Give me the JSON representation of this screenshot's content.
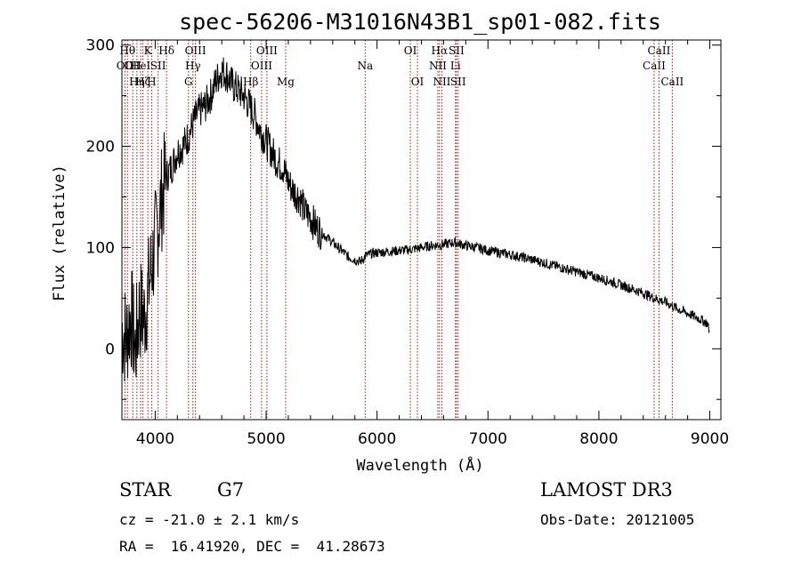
{
  "chart_data": {
    "type": "line",
    "title": "spec-56206-M31016N43B1_sp01-082.fits",
    "xlabel": "Wavelength (Å)",
    "ylabel": "Flux (relative)",
    "xlim": [
      3700,
      9100
    ],
    "ylim": [
      -70,
      305
    ],
    "xticks": [
      4000,
      5000,
      6000,
      7000,
      8000,
      9000
    ],
    "yticks": [
      0,
      100,
      200,
      300
    ],
    "series": [
      {
        "name": "spectrum",
        "x": [
          3700,
          3740,
          3780,
          3820,
          3860,
          3900,
          3940,
          3980,
          4020,
          4060,
          4100,
          4150,
          4200,
          4250,
          4300,
          4350,
          4400,
          4450,
          4500,
          4550,
          4600,
          4650,
          4700,
          4750,
          4800,
          4850,
          4900,
          4950,
          5000,
          5050,
          5100,
          5150,
          5200,
          5250,
          5300,
          5350,
          5400,
          5450,
          5500,
          5550,
          5600,
          5650,
          5700,
          5750,
          5800,
          5850,
          5900,
          5950,
          6000,
          6100,
          6200,
          6300,
          6400,
          6500,
          6600,
          6700,
          6800,
          6900,
          7000,
          7200,
          7400,
          7600,
          7800,
          8000,
          8200,
          8400,
          8500,
          8600,
          8700,
          8800,
          8900,
          8980,
          9000
        ],
        "y": [
          20,
          10,
          35,
          0,
          40,
          30,
          60,
          90,
          120,
          150,
          170,
          180,
          195,
          200,
          210,
          225,
          235,
          240,
          250,
          265,
          275,
          270,
          260,
          255,
          250,
          240,
          230,
          215,
          205,
          195,
          185,
          180,
          165,
          155,
          150,
          135,
          130,
          120,
          115,
          110,
          105,
          100,
          95,
          90,
          88,
          86,
          92,
          94,
          95,
          96,
          97,
          98,
          100,
          102,
          103,
          105,
          102,
          100,
          97,
          93,
          88,
          82,
          76,
          70,
          63,
          55,
          50,
          46,
          40,
          35,
          30,
          25,
          15
        ]
      }
    ],
    "line_markers": [
      {
        "wl": 3727,
        "label": "OII",
        "row": 2
      },
      {
        "wl": 3750,
        "label": "Hθ",
        "row": 1
      },
      {
        "wl": 3798,
        "label": "OII",
        "row": 2
      },
      {
        "wl": 3835,
        "label": "Hη",
        "row": 3
      },
      {
        "wl": 3869,
        "label": "HeI",
        "row": 2
      },
      {
        "wl": 3889,
        "label": "Hζ",
        "row": 3
      },
      {
        "wl": 3934,
        "label": "K",
        "row": 1
      },
      {
        "wl": 3968,
        "label": "H",
        "row": 3
      },
      {
        "wl": 4026,
        "label": "SII",
        "row": 2
      },
      {
        "wl": 4102,
        "label": "Hδ",
        "row": 1
      },
      {
        "wl": 4300,
        "label": "G",
        "row": 3
      },
      {
        "wl": 4340,
        "label": "Hγ",
        "row": 2
      },
      {
        "wl": 4363,
        "label": "OIII",
        "row": 1
      },
      {
        "wl": 4861,
        "label": "Hβ",
        "row": 3
      },
      {
        "wl": 4959,
        "label": "OIII",
        "row": 2
      },
      {
        "wl": 5007,
        "label": "OIII",
        "row": 1
      },
      {
        "wl": 5176,
        "label": "Mg",
        "row": 3
      },
      {
        "wl": 5893,
        "label": "Na",
        "row": 2
      },
      {
        "wl": 6300,
        "label": "OI",
        "row": 1
      },
      {
        "wl": 6364,
        "label": "OI",
        "row": 3
      },
      {
        "wl": 6548,
        "label": "NII",
        "row": 2
      },
      {
        "wl": 6563,
        "label": "Hα",
        "row": 1
      },
      {
        "wl": 6584,
        "label": "NII",
        "row": 3
      },
      {
        "wl": 6707,
        "label": "Li",
        "row": 2
      },
      {
        "wl": 6716,
        "label": "SII",
        "row": 1
      },
      {
        "wl": 6731,
        "label": "SII",
        "row": 3
      },
      {
        "wl": 8498,
        "label": "CaII",
        "row": 2
      },
      {
        "wl": 8542,
        "label": "CaII",
        "row": 1
      },
      {
        "wl": 8662,
        "label": "CaII",
        "row": 3
      }
    ]
  },
  "info": {
    "class_label": "STAR",
    "subclass": "G7",
    "survey": "LAMOST DR3",
    "cz": "cz = -21.0 ± 2.1 km/s",
    "obs_date": "Obs-Date: 20121005",
    "coords": "RA =  16.41920, DEC =  41.28673"
  }
}
